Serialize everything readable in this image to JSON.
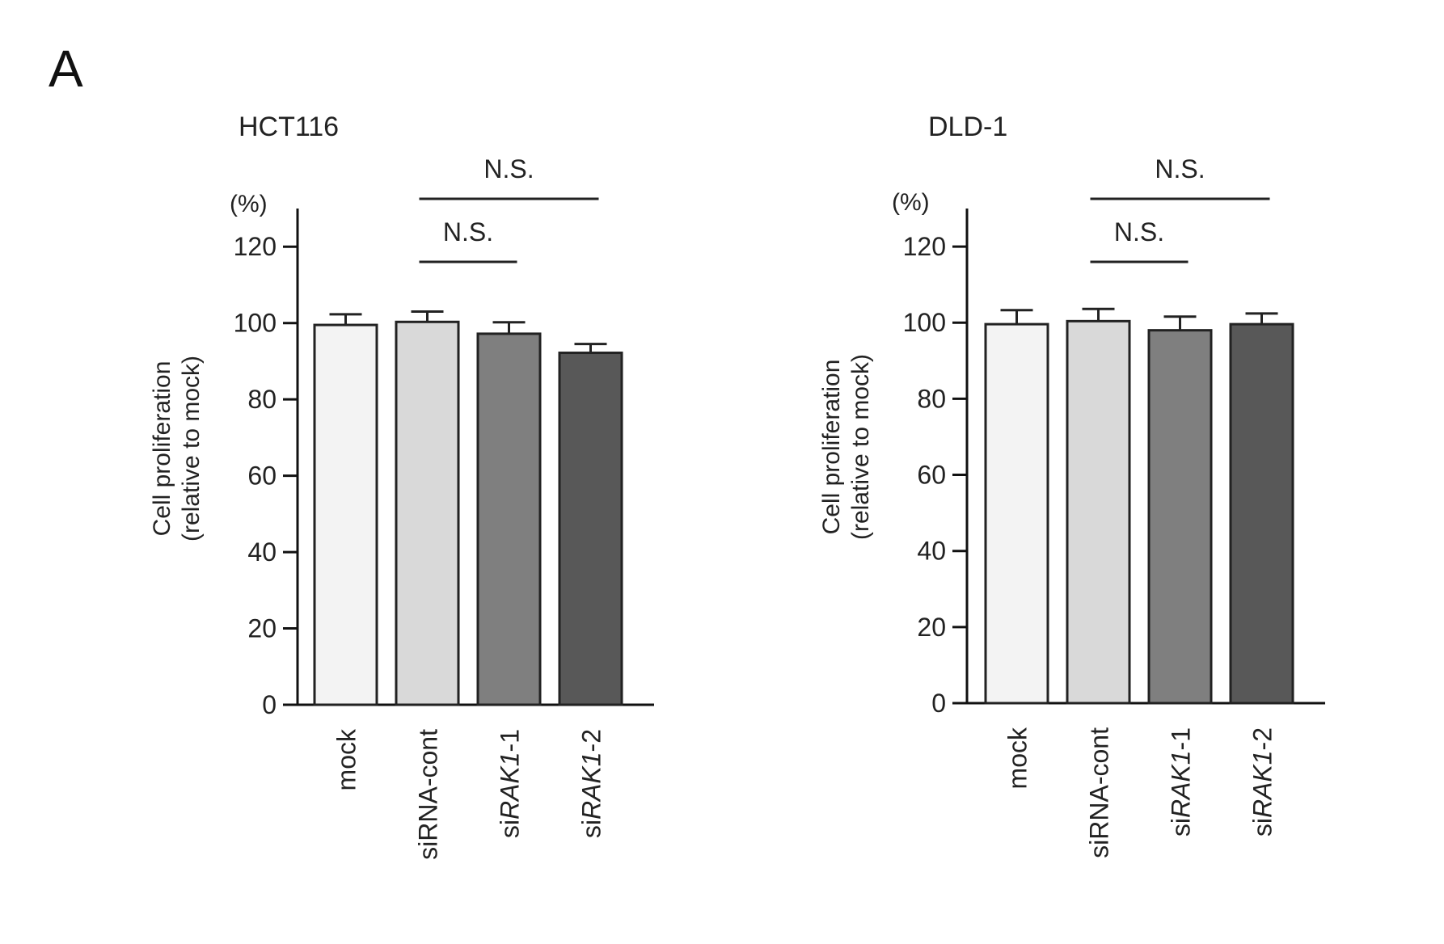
{
  "panel_label": "A",
  "chart_data": [
    {
      "type": "bar",
      "title": "HCT116",
      "ylabel_line1": "Cell proliferation",
      "ylabel_line2": "(relative to mock)",
      "unit": "(%)",
      "ylim": [
        0,
        130
      ],
      "yticks": [
        0,
        20,
        40,
        60,
        80,
        100,
        120
      ],
      "categories": [
        {
          "prefix": "mock",
          "italic": ""
        },
        {
          "prefix": "siRNA-cont",
          "italic": ""
        },
        {
          "prefix": "si",
          "italic": "RAK1",
          "suffix": "-1"
        },
        {
          "prefix": "si",
          "italic": "RAK1",
          "suffix": "-2"
        }
      ],
      "values": [
        99.5,
        100.3,
        97.2,
        92.2
      ],
      "errors": [
        2.8,
        2.7,
        3.0,
        2.3
      ],
      "colors": [
        "#f3f3f3",
        "#d9d9d9",
        "#7f7f7f",
        "#585858"
      ],
      "brackets": [
        {
          "from": 1,
          "to": 2,
          "label": "N.S.",
          "level": 1
        },
        {
          "from": 1,
          "to": 3,
          "label": "N.S.",
          "level": 2
        }
      ]
    },
    {
      "type": "bar",
      "title": "DLD-1",
      "ylabel_line1": "Cell proliferation",
      "ylabel_line2": "(relative to mock)",
      "unit": "(%)",
      "ylim": [
        0,
        130
      ],
      "yticks": [
        0,
        20,
        40,
        60,
        80,
        100,
        120
      ],
      "categories": [
        {
          "prefix": "mock",
          "italic": ""
        },
        {
          "prefix": "siRNA-cont",
          "italic": ""
        },
        {
          "prefix": "si",
          "italic": "RAK1",
          "suffix": "-1"
        },
        {
          "prefix": "si",
          "italic": "RAK1",
          "suffix": "-2"
        }
      ],
      "values": [
        99.6,
        100.4,
        98.0,
        99.6
      ],
      "errors": [
        3.7,
        3.2,
        3.6,
        2.8
      ],
      "colors": [
        "#f3f3f3",
        "#d9d9d9",
        "#7f7f7f",
        "#585858"
      ],
      "brackets": [
        {
          "from": 1,
          "to": 2,
          "label": "N.S.",
          "level": 1
        },
        {
          "from": 1,
          "to": 3,
          "label": "N.S.",
          "level": 2
        }
      ]
    }
  ]
}
